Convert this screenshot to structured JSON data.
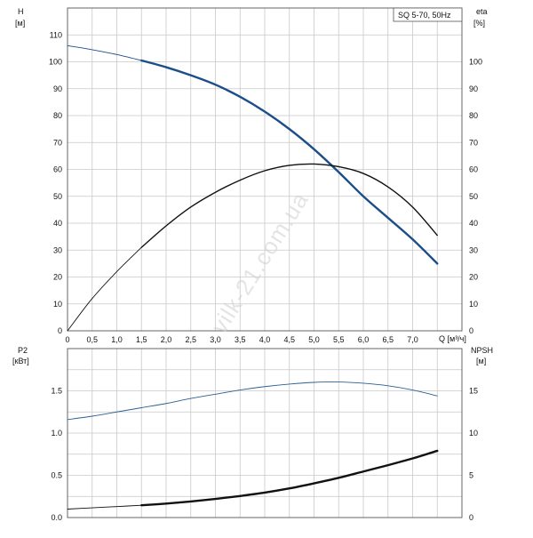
{
  "chart_data": [
    {
      "type": "line",
      "panel": "top",
      "title_box": "SQ 5-70, 50Hz",
      "y_left_label": "H",
      "y_left_unit": "[м]",
      "y_right_label": "eta",
      "y_right_unit": "[%]",
      "x_unit": "Q [м³/ч]",
      "xlim": [
        0,
        8.0
      ],
      "ylim_left": [
        0,
        120
      ],
      "ylim_right": [
        0,
        120
      ],
      "x_tick_labels": [
        "0",
        "0,5",
        "1,0",
        "1,5",
        "2,0",
        "2,5",
        "3,0",
        "3,5",
        "4,0",
        "4,5",
        "5,0",
        "5,5",
        "6,0",
        "6,5",
        "7,0"
      ],
      "x_tick_values": [
        0,
        0.5,
        1.0,
        1.5,
        2.0,
        2.5,
        3.0,
        3.5,
        4.0,
        4.5,
        5.0,
        5.5,
        6.0,
        6.5,
        7.0
      ],
      "y_left_ticks": [
        0,
        10,
        20,
        30,
        40,
        50,
        60,
        70,
        80,
        90,
        100,
        110
      ],
      "y_right_ticks": [
        0,
        10,
        20,
        30,
        40,
        50,
        60,
        70,
        80,
        90,
        100
      ],
      "grid": true,
      "series": [
        {
          "axis": "left",
          "color": "#1d4e8a",
          "segments": [
            {
              "style": "thin",
              "x": [
                0,
                0.5,
                1.0,
                1.5
              ],
              "y": [
                106,
                104.5,
                102.7,
                100.5
              ]
            },
            {
              "style": "thick",
              "x": [
                1.5,
                2.0,
                2.5,
                3.0,
                3.5,
                4.0,
                4.5,
                5.0,
                5.5,
                6.0,
                6.5,
                7.0,
                7.5
              ],
              "y": [
                100.5,
                98,
                95,
                91.5,
                87,
                81.5,
                75,
                67.5,
                59,
                50,
                42,
                34,
                25
              ]
            }
          ]
        },
        {
          "axis": "right",
          "color": "#111111",
          "segments": [
            {
              "style": "thin",
              "x": [
                0,
                0.5,
                1.0,
                1.5
              ],
              "y": [
                0,
                12,
                22,
                31
              ]
            },
            {
              "style": "medium",
              "x": [
                1.5,
                2.0,
                2.5,
                3.0,
                3.5,
                4.0,
                4.5,
                5.0,
                5.5,
                6.0,
                6.5,
                7.0,
                7.5
              ],
              "y": [
                31,
                39,
                46,
                51.5,
                56,
                59.5,
                61.5,
                62,
                61,
                58.5,
                53.5,
                46,
                35.5
              ]
            }
          ]
        }
      ]
    },
    {
      "type": "line",
      "panel": "bottom",
      "y_left_label": "P2",
      "y_left_unit": "[кВт]",
      "y_right_label": "NPSH",
      "y_right_unit": "[м]",
      "xlim": [
        0,
        8.0
      ],
      "ylim_left": [
        0,
        2.0
      ],
      "ylim_right": [
        0,
        20
      ],
      "y_left_ticks": [
        "0.0",
        "0.5",
        "1.0",
        "1.5"
      ],
      "y_left_tick_values": [
        0,
        0.5,
        1.0,
        1.5
      ],
      "y_right_ticks": [
        "0",
        "5",
        "10",
        "15"
      ],
      "y_right_tick_values": [
        0,
        5,
        10,
        15
      ],
      "grid": true,
      "series": [
        {
          "axis": "left",
          "color": "#2b5f95",
          "segments": [
            {
              "style": "thin",
              "x": [
                0,
                0.5,
                1.0,
                1.5,
                2.0,
                2.5,
                3.0,
                3.5,
                4.0,
                4.5,
                5.0,
                5.5,
                6.0,
                6.5,
                7.0,
                7.5
              ],
              "y": [
                1.16,
                1.2,
                1.25,
                1.3,
                1.35,
                1.41,
                1.46,
                1.51,
                1.55,
                1.58,
                1.6,
                1.605,
                1.59,
                1.56,
                1.51,
                1.44
              ]
            }
          ]
        },
        {
          "axis": "left",
          "color": "#111111",
          "segments": [
            {
              "style": "thin",
              "x": [
                0,
                0.5,
                1.0,
                1.5
              ],
              "y": [
                0.1,
                0.115,
                0.13,
                0.145
              ]
            },
            {
              "style": "thick",
              "x": [
                1.5,
                2.0,
                2.5,
                3.0,
                3.5,
                4.0,
                4.5,
                5.0,
                5.5,
                6.0,
                6.5,
                7.0,
                7.5
              ],
              "y": [
                0.145,
                0.165,
                0.19,
                0.22,
                0.255,
                0.295,
                0.345,
                0.405,
                0.47,
                0.545,
                0.62,
                0.7,
                0.79
              ]
            }
          ]
        }
      ]
    }
  ],
  "watermark": "vilk-21.com.ua"
}
